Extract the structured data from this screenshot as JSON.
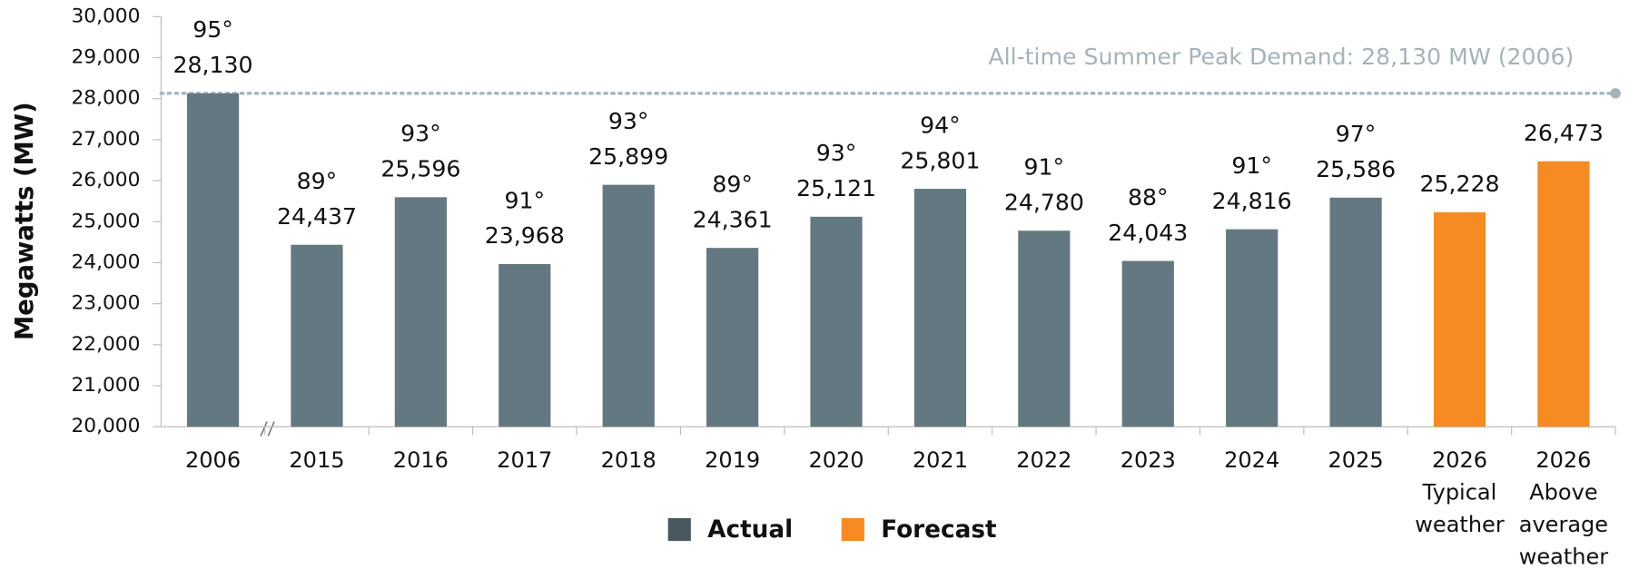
{
  "chart_data": {
    "type": "bar",
    "y_label": "Megawatts (MW)",
    "categories": [
      [
        "2006"
      ],
      [
        "2015"
      ],
      [
        "2016"
      ],
      [
        "2017"
      ],
      [
        "2018"
      ],
      [
        "2019"
      ],
      [
        "2020"
      ],
      [
        "2021"
      ],
      [
        "2022"
      ],
      [
        "2023"
      ],
      [
        "2024"
      ],
      [
        "2025"
      ],
      [
        "2026",
        "Typical",
        "weather"
      ],
      [
        "2026",
        "Above",
        "average",
        "weather"
      ]
    ],
    "series": [
      {
        "name": "Actual",
        "color": "#647881",
        "values": [
          28130,
          24437,
          25596,
          23968,
          25899,
          24361,
          25121,
          25801,
          24780,
          24043,
          24816,
          25586,
          null,
          null
        ],
        "value_labels": [
          "28,130",
          "24,437",
          "25,596",
          "23,968",
          "25,899",
          "24,361",
          "25,121",
          "25,801",
          "24,780",
          "24,043",
          "24,816",
          "25,586",
          null,
          null
        ]
      },
      {
        "name": "Forecast",
        "color": "#f58b22",
        "values": [
          null,
          null,
          null,
          null,
          null,
          null,
          null,
          null,
          null,
          null,
          null,
          null,
          25228,
          26473
        ],
        "value_labels": [
          null,
          null,
          null,
          null,
          null,
          null,
          null,
          null,
          null,
          null,
          null,
          null,
          "25,228",
          "26,473"
        ]
      }
    ],
    "temperatures": [
      "95°",
      "89°",
      "93°",
      "91°",
      "93°",
      "89°",
      "93°",
      "94°",
      "91°",
      "88°",
      "91°",
      "97°",
      null,
      null
    ],
    "reference_line": {
      "value": 28130,
      "label": "All-time Summer Peak Demand: 28,130 MW (2006)",
      "color": "#a4b3ba"
    },
    "ylim": [
      20000,
      30000
    ],
    "yticks": [
      {
        "value": 20000,
        "label": "20,000"
      },
      {
        "value": 21000,
        "label": "21,000"
      },
      {
        "value": 22000,
        "label": "22,000"
      },
      {
        "value": 23000,
        "label": "23,000"
      },
      {
        "value": 24000,
        "label": "24,000"
      },
      {
        "value": 25000,
        "label": "25,000"
      },
      {
        "value": 26000,
        "label": "26,000"
      },
      {
        "value": 27000,
        "label": "27,000"
      },
      {
        "value": 28000,
        "label": "28,000"
      },
      {
        "value": 29000,
        "label": "29,000"
      },
      {
        "value": 30000,
        "label": "30,000"
      }
    ],
    "legend": "bottom"
  }
}
